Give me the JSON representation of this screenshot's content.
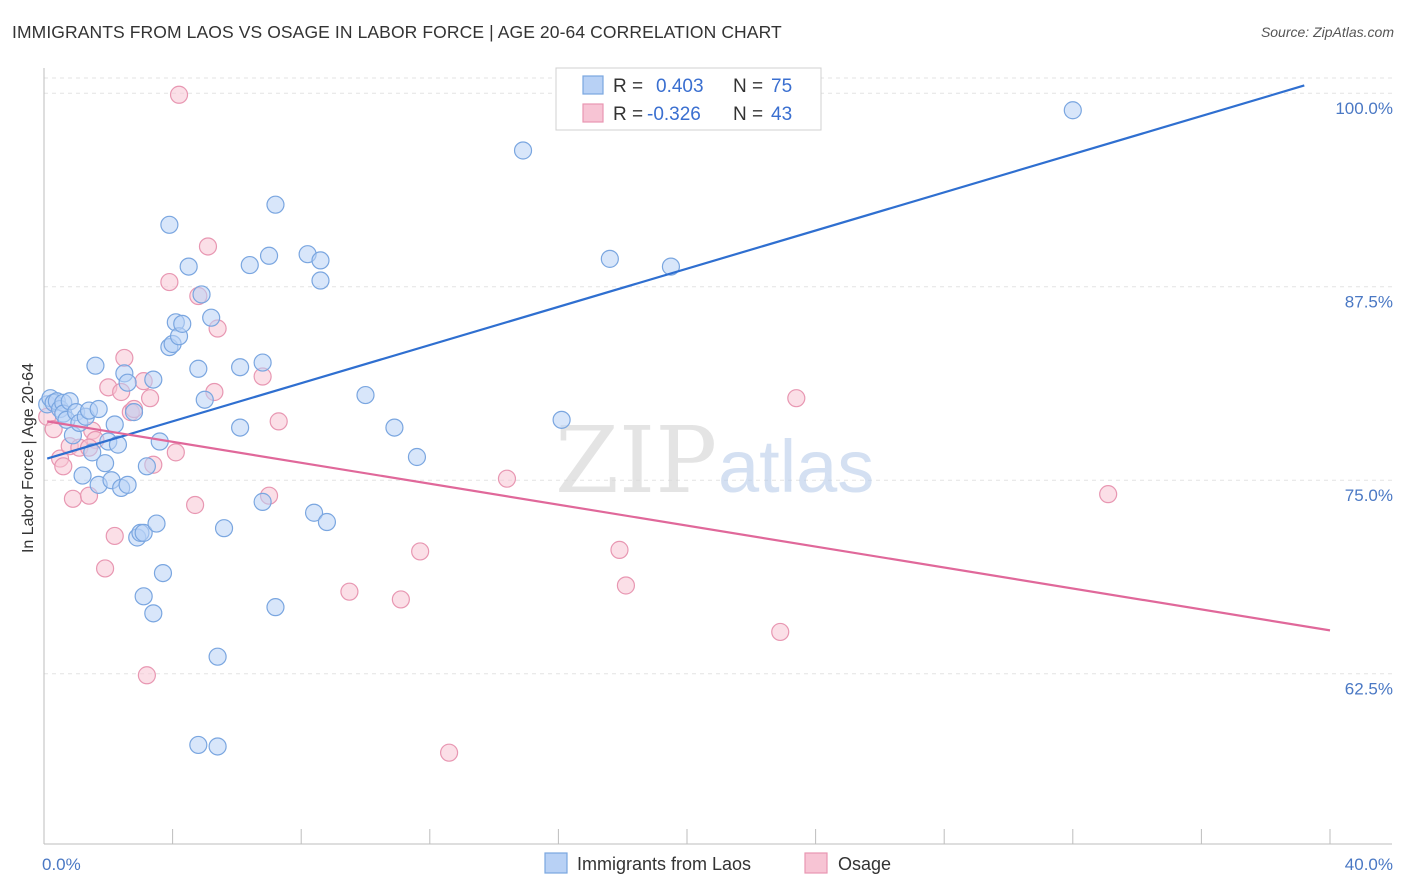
{
  "header": {
    "title": "IMMIGRANTS FROM LAOS VS OSAGE IN LABOR FORCE | AGE 20-64 CORRELATION CHART",
    "source": "Source: ZipAtlas.com"
  },
  "watermark": {
    "zip": "ZIP",
    "atlas": "atlas"
  },
  "legend_top": {
    "r_label": "R =",
    "n_label": "N =",
    "rows": [
      {
        "r": "0.403",
        "n": "75"
      },
      {
        "r": "-0.326",
        "n": "43"
      }
    ]
  },
  "colors": {
    "blue_fill": "#b8d1f5",
    "blue_stroke": "#7aa6e0",
    "blue_line": "#2f6fd0",
    "pink_fill": "#f7c4d4",
    "pink_stroke": "#e897b2",
    "pink_line": "#e0689a",
    "tick_text": "#4a78c4"
  },
  "chart_data": {
    "type": "scatter",
    "title": "IMMIGRANTS FROM LAOS VS OSAGE IN LABOR FORCE | AGE 20-64 CORRELATION CHART",
    "xlabel": "",
    "ylabel": "In Labor Force | Age 20-64",
    "xlim": [
      0,
      40
    ],
    "ylim": [
      51.5,
      101.5
    ],
    "x_tick_labels": [
      "0.0%",
      "40.0%"
    ],
    "y_ticks": [
      62.5,
      75.0,
      87.5,
      100.0
    ],
    "y_tick_labels": [
      "62.5%",
      "75.0%",
      "87.5%",
      "100.0%"
    ],
    "grid": true,
    "legend_position": "top-center",
    "series": [
      {
        "name": "Immigrants from Laos",
        "color": "#b8d1f5",
        "trend": {
          "x": [
            0.1,
            39.2
          ],
          "y": [
            76.4,
            100.5
          ]
        },
        "points": [
          [
            0.1,
            79.9
          ],
          [
            0.2,
            80.3
          ],
          [
            0.3,
            80.0
          ],
          [
            0.4,
            80.1
          ],
          [
            0.5,
            79.6
          ],
          [
            0.6,
            80.0
          ],
          [
            0.6,
            79.3
          ],
          [
            0.7,
            78.9
          ],
          [
            0.8,
            80.1
          ],
          [
            0.9,
            77.9
          ],
          [
            1.0,
            79.4
          ],
          [
            1.1,
            78.7
          ],
          [
            1.3,
            79.1
          ],
          [
            1.4,
            79.5
          ],
          [
            1.5,
            76.8
          ],
          [
            1.2,
            75.3
          ],
          [
            1.6,
            82.4
          ],
          [
            1.7,
            74.7
          ],
          [
            1.7,
            79.6
          ],
          [
            1.9,
            76.1
          ],
          [
            2.0,
            77.5
          ],
          [
            2.1,
            75.0
          ],
          [
            2.2,
            78.6
          ],
          [
            2.3,
            77.3
          ],
          [
            2.4,
            74.5
          ],
          [
            2.5,
            81.9
          ],
          [
            2.6,
            74.7
          ],
          [
            2.6,
            81.3
          ],
          [
            2.8,
            79.4
          ],
          [
            2.9,
            71.3
          ],
          [
            3.0,
            71.6
          ],
          [
            3.1,
            71.6
          ],
          [
            3.1,
            67.5
          ],
          [
            3.2,
            75.9
          ],
          [
            3.4,
            81.5
          ],
          [
            3.4,
            66.4
          ],
          [
            3.5,
            72.2
          ],
          [
            3.6,
            77.5
          ],
          [
            3.7,
            69.0
          ],
          [
            3.9,
            83.6
          ],
          [
            3.9,
            91.5
          ],
          [
            4.0,
            83.8
          ],
          [
            4.1,
            85.2
          ],
          [
            4.2,
            84.3
          ],
          [
            4.3,
            85.1
          ],
          [
            4.5,
            88.8
          ],
          [
            4.8,
            82.2
          ],
          [
            4.9,
            87.0
          ],
          [
            5.0,
            80.2
          ],
          [
            5.2,
            85.5
          ],
          [
            4.8,
            57.9
          ],
          [
            5.4,
            57.8
          ],
          [
            5.4,
            63.6
          ],
          [
            5.6,
            71.9
          ],
          [
            6.1,
            78.4
          ],
          [
            6.1,
            82.3
          ],
          [
            6.4,
            88.9
          ],
          [
            6.8,
            73.6
          ],
          [
            6.8,
            82.6
          ],
          [
            7.0,
            89.5
          ],
          [
            7.2,
            92.8
          ],
          [
            7.2,
            66.8
          ],
          [
            8.2,
            89.6
          ],
          [
            8.4,
            72.9
          ],
          [
            8.6,
            89.2
          ],
          [
            8.6,
            87.9
          ],
          [
            8.8,
            72.3
          ],
          [
            10.0,
            80.5
          ],
          [
            10.9,
            78.4
          ],
          [
            11.6,
            76.5
          ],
          [
            14.9,
            96.3
          ],
          [
            16.1,
            78.9
          ],
          [
            17.6,
            89.3
          ],
          [
            19.5,
            88.8
          ],
          [
            32.0,
            98.9
          ]
        ]
      },
      {
        "name": "Osage",
        "color": "#f7c4d4",
        "trend": {
          "x": [
            0.1,
            40.0
          ],
          "y": [
            78.8,
            65.3
          ]
        },
        "points": [
          [
            0.1,
            79.1
          ],
          [
            0.3,
            78.3
          ],
          [
            0.5,
            76.4
          ],
          [
            0.6,
            75.9
          ],
          [
            0.8,
            77.2
          ],
          [
            0.9,
            73.8
          ],
          [
            1.1,
            77.1
          ],
          [
            1.4,
            74.0
          ],
          [
            1.5,
            78.2
          ],
          [
            1.6,
            77.6
          ],
          [
            1.9,
            69.3
          ],
          [
            2.0,
            81.0
          ],
          [
            2.2,
            71.4
          ],
          [
            2.4,
            80.7
          ],
          [
            2.5,
            82.9
          ],
          [
            2.7,
            79.4
          ],
          [
            2.8,
            79.6
          ],
          [
            3.1,
            81.4
          ],
          [
            3.2,
            62.4
          ],
          [
            3.3,
            80.3
          ],
          [
            3.4,
            76.0
          ],
          [
            3.9,
            87.8
          ],
          [
            4.1,
            76.8
          ],
          [
            4.7,
            73.4
          ],
          [
            4.8,
            86.9
          ],
          [
            5.1,
            90.1
          ],
          [
            5.4,
            84.8
          ],
          [
            5.3,
            80.7
          ],
          [
            6.8,
            81.7
          ],
          [
            7.0,
            74.0
          ],
          [
            7.3,
            78.8
          ],
          [
            4.2,
            99.9
          ],
          [
            9.5,
            67.8
          ],
          [
            11.1,
            67.3
          ],
          [
            11.7,
            70.4
          ],
          [
            12.6,
            57.4
          ],
          [
            14.4,
            75.1
          ],
          [
            17.9,
            70.5
          ],
          [
            18.1,
            68.2
          ],
          [
            22.9,
            65.2
          ],
          [
            23.4,
            80.3
          ],
          [
            33.1,
            74.1
          ],
          [
            1.4,
            77.1
          ]
        ]
      }
    ]
  }
}
